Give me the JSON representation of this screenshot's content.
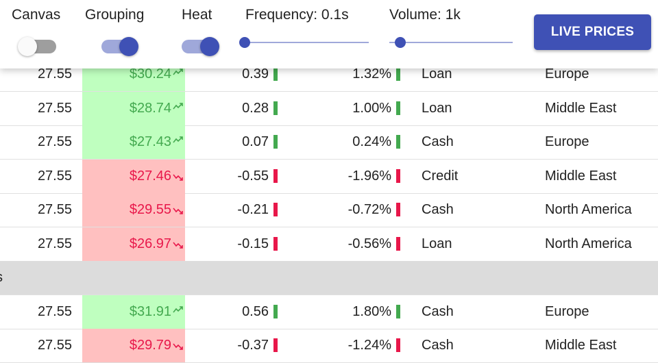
{
  "toolbar": {
    "toggles": [
      {
        "label": "Canvas",
        "checked": false
      },
      {
        "label": "Grouping",
        "checked": true
      },
      {
        "label": "Heat",
        "checked": true
      }
    ],
    "sliders": [
      {
        "label": "Frequency: 0.1s"
      },
      {
        "label": "Volume: 1k"
      }
    ],
    "button": "LIVE PRICES"
  },
  "grid": {
    "rows": [
      {
        "cells": [
          "27.55",
          "$30.24",
          "0.39",
          "1.32%",
          "Loan",
          "Europe"
        ],
        "trend": "up"
      },
      {
        "cells": [
          "27.55",
          "$28.74",
          "0.28",
          "1.00%",
          "Loan",
          "Middle East"
        ],
        "trend": "up"
      },
      {
        "cells": [
          "27.55",
          "$27.43",
          "0.07",
          "0.24%",
          "Cash",
          "Europe"
        ],
        "trend": "up"
      },
      {
        "cells": [
          "27.55",
          "$27.46",
          "-0.55",
          "-1.96%",
          "Credit",
          "Middle East"
        ],
        "trend": "down"
      },
      {
        "cells": [
          "27.55",
          "$29.55",
          "-0.21",
          "-0.72%",
          "Cash",
          "North America"
        ],
        "trend": "down"
      },
      {
        "cells": [
          "27.55",
          "$26.97",
          "-0.15",
          "-0.56%",
          "Loan",
          "North America"
        ],
        "trend": "down"
      },
      {
        "group": "s"
      },
      {
        "cells": [
          "27.55",
          "$31.91",
          "0.56",
          "1.80%",
          "Cash",
          "Europe"
        ],
        "trend": "up"
      },
      {
        "cells": [
          "27.55",
          "$29.79",
          "-0.37",
          "-1.24%",
          "Cash",
          "Middle East"
        ],
        "trend": "down"
      }
    ]
  }
}
